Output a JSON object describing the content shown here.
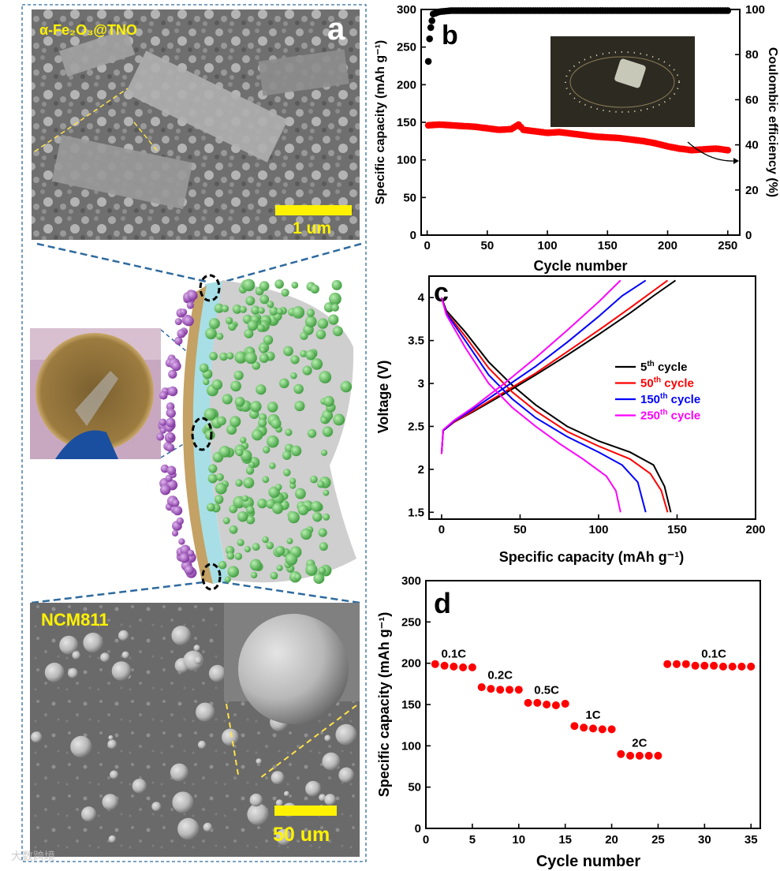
{
  "panel_a": {
    "letter": "a",
    "top_image_label": "α-Fe₂O₃@TNO",
    "top_scale": "1 um",
    "bottom_image_label": "NCM811",
    "bottom_scale": "50 um"
  },
  "watermark": "大数跨境",
  "colors": {
    "frame": "#2e6a9e",
    "scalebar": "#fff200",
    "sphere_green": "#5cc45c",
    "sphere_purple": "#a34fc2",
    "layer_tan": "#c4a164",
    "layer_cyan": "#a8dfe6",
    "red": "#ff0000",
    "blue": "#0000ff",
    "magenta": "#ff00ff",
    "black": "#000000"
  },
  "chart_data": [
    {
      "panel": "b",
      "type": "scatter",
      "xlabel": "Cycle number",
      "ylabel": "Specific capacity (mAh g⁻¹)",
      "ylabel2": "Coulombic efficiency (%)",
      "xlim": [
        -5,
        260
      ],
      "ylim": [
        0,
        300
      ],
      "ylim2": [
        0,
        100
      ],
      "xticks": [
        0,
        50,
        100,
        150,
        200,
        250
      ],
      "yticks": [
        0,
        50,
        100,
        150,
        200,
        250,
        300
      ],
      "yticks2": [
        0,
        20,
        40,
        60,
        80,
        100
      ],
      "series": [
        {
          "role": "capacity",
          "color": "#ff0000",
          "x": [
            1,
            10,
            20,
            30,
            40,
            50,
            60,
            70,
            76,
            80,
            90,
            100,
            110,
            120,
            130,
            140,
            150,
            160,
            170,
            180,
            190,
            200,
            210,
            220,
            230,
            240,
            250
          ],
          "y": [
            146,
            147,
            146,
            145,
            144,
            142,
            140,
            141,
            147,
            140,
            138,
            136,
            137,
            135,
            133,
            131,
            130,
            129,
            127,
            125,
            122,
            118,
            115,
            113,
            114,
            115,
            113
          ]
        },
        {
          "role": "coulombic_efficiency",
          "color": "#000000",
          "x": [
            1,
            2,
            3,
            4,
            5,
            10,
            20,
            30,
            40,
            50,
            60,
            70,
            80,
            90,
            100,
            110,
            120,
            130,
            140,
            150,
            160,
            170,
            180,
            190,
            200,
            210,
            220,
            230,
            240,
            250
          ],
          "y": [
            77,
            87,
            92,
            95,
            98,
            99,
            99.5,
            99.5,
            99.5,
            99.5,
            99.5,
            99.5,
            99.5,
            99.5,
            99.5,
            99.5,
            99.5,
            99.5,
            99.5,
            99.5,
            99.5,
            99.5,
            99.5,
            99.5,
            99.5,
            99.5,
            99.5,
            99.5,
            99.5,
            99.5
          ]
        }
      ]
    },
    {
      "panel": "c",
      "type": "line",
      "xlabel": "Specific capacity (mAh g⁻¹)",
      "ylabel": "Voltage (V)",
      "xlim": [
        -8,
        200
      ],
      "ylim": [
        1.42,
        4.25
      ],
      "xticks": [
        0,
        50,
        100,
        150,
        200
      ],
      "yticks": [
        1.5,
        2.0,
        2.5,
        3.0,
        3.5,
        4.0
      ],
      "legend_position": "center-right",
      "series": [
        {
          "name": "5th cycle",
          "color": "#000000",
          "discharge": [
            [
              0,
              4.0
            ],
            [
              3,
              3.85
            ],
            [
              15,
              3.6
            ],
            [
              30,
              3.25
            ],
            [
              45,
              2.98
            ],
            [
              60,
              2.75
            ],
            [
              80,
              2.5
            ],
            [
              100,
              2.33
            ],
            [
              120,
              2.2
            ],
            [
              135,
              2.05
            ],
            [
              142,
              1.8
            ],
            [
              146,
              1.5
            ]
          ],
          "charge": [
            [
              0,
              2.18
            ],
            [
              1,
              2.45
            ],
            [
              8,
              2.55
            ],
            [
              20,
              2.67
            ],
            [
              40,
              2.88
            ],
            [
              60,
              3.1
            ],
            [
              80,
              3.33
            ],
            [
              100,
              3.57
            ],
            [
              120,
              3.82
            ],
            [
              135,
              4.02
            ],
            [
              149,
              4.2
            ]
          ]
        },
        {
          "name": "50th cycle",
          "color": "#ff0000",
          "discharge": [
            [
              0,
              4.0
            ],
            [
              3,
              3.83
            ],
            [
              15,
              3.55
            ],
            [
              30,
              3.18
            ],
            [
              45,
              2.9
            ],
            [
              60,
              2.68
            ],
            [
              80,
              2.44
            ],
            [
              100,
              2.27
            ],
            [
              120,
              2.12
            ],
            [
              133,
              1.95
            ],
            [
              140,
              1.75
            ],
            [
              144,
              1.5
            ]
          ],
          "charge": [
            [
              0,
              2.18
            ],
            [
              1,
              2.45
            ],
            [
              8,
              2.55
            ],
            [
              20,
              2.68
            ],
            [
              40,
              2.9
            ],
            [
              60,
              3.12
            ],
            [
              80,
              3.37
            ],
            [
              100,
              3.62
            ],
            [
              120,
              3.88
            ],
            [
              135,
              4.08
            ],
            [
              144,
              4.2
            ]
          ]
        },
        {
          "name": "150th cycle",
          "color": "#0000ff",
          "discharge": [
            [
              0,
              4.0
            ],
            [
              3,
              3.82
            ],
            [
              15,
              3.5
            ],
            [
              30,
              3.1
            ],
            [
              45,
              2.82
            ],
            [
              60,
              2.6
            ],
            [
              80,
              2.38
            ],
            [
              100,
              2.2
            ],
            [
              115,
              2.05
            ],
            [
              125,
              1.85
            ],
            [
              130,
              1.5
            ]
          ],
          "charge": [
            [
              0,
              2.18
            ],
            [
              1,
              2.45
            ],
            [
              8,
              2.56
            ],
            [
              20,
              2.7
            ],
            [
              40,
              2.95
            ],
            [
              60,
              3.2
            ],
            [
              80,
              3.48
            ],
            [
              100,
              3.78
            ],
            [
              115,
              4.02
            ],
            [
              130,
              4.2
            ]
          ]
        },
        {
          "name": "250th cycle",
          "color": "#ff00ff",
          "discharge": [
            [
              0,
              4.0
            ],
            [
              3,
              3.8
            ],
            [
              15,
              3.42
            ],
            [
              30,
              3.0
            ],
            [
              45,
              2.72
            ],
            [
              60,
              2.5
            ],
            [
              75,
              2.3
            ],
            [
              90,
              2.12
            ],
            [
              105,
              1.92
            ],
            [
              111,
              1.75
            ],
            [
              114,
              1.5
            ]
          ],
          "charge": [
            [
              0,
              2.18
            ],
            [
              1,
              2.46
            ],
            [
              8,
              2.57
            ],
            [
              20,
              2.72
            ],
            [
              40,
              3.0
            ],
            [
              60,
              3.3
            ],
            [
              80,
              3.62
            ],
            [
              100,
              3.95
            ],
            [
              114,
              4.2
            ]
          ]
        }
      ]
    },
    {
      "panel": "d",
      "type": "scatter",
      "xlabel": "Cycle number",
      "ylabel": "Specific capacity (mAh g⁻¹)",
      "xlim": [
        0,
        36
      ],
      "ylim": [
        0,
        300
      ],
      "xticks": [
        0,
        5,
        10,
        15,
        20,
        25,
        30,
        35
      ],
      "yticks": [
        0,
        50,
        100,
        150,
        200,
        250,
        300
      ],
      "x": [
        1,
        2,
        3,
        4,
        5,
        6,
        7,
        8,
        9,
        10,
        11,
        12,
        13,
        14,
        15,
        16,
        17,
        18,
        19,
        20,
        21,
        22,
        23,
        24,
        25,
        26,
        27,
        28,
        29,
        30,
        31,
        32,
        33,
        34,
        35
      ],
      "values": [
        199,
        197,
        196,
        195,
        195,
        171,
        169,
        168,
        168,
        168,
        152,
        152,
        150,
        149,
        151,
        124,
        122,
        121,
        120,
        120,
        90,
        88,
        88,
        88,
        88,
        199,
        199,
        199,
        197,
        197,
        197,
        196,
        196,
        196,
        196
      ],
      "rate_labels": [
        {
          "text": "0.1C",
          "x": 3,
          "y": 207
        },
        {
          "text": "0.2C",
          "x": 8,
          "y": 181
        },
        {
          "text": "0.5C",
          "x": 13,
          "y": 163
        },
        {
          "text": "1C",
          "x": 18,
          "y": 133
        },
        {
          "text": "2C",
          "x": 23,
          "y": 99
        },
        {
          "text": "0.1C",
          "x": 31,
          "y": 207
        }
      ]
    }
  ]
}
